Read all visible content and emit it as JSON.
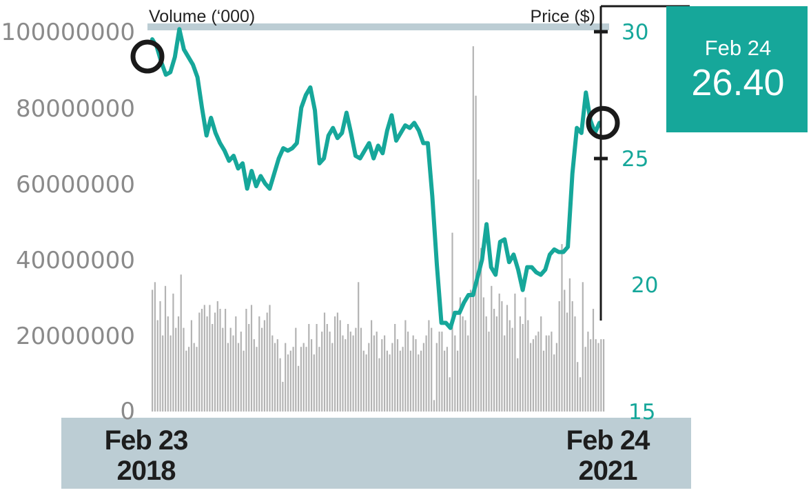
{
  "chart_data": {
    "type": "bar+line",
    "volume_axis": {
      "label": "Volume (‘000)",
      "ticks": [
        "0",
        "20000000",
        "40000000",
        "60000000",
        "80000000",
        "100000000"
      ],
      "range": [
        0,
        100000000
      ]
    },
    "price_axis": {
      "label": "Price ($)",
      "ticks": [
        "15",
        "20",
        "25",
        "30"
      ],
      "range": [
        15,
        30
      ]
    },
    "x_start": {
      "date": "Feb 23",
      "year": "2018"
    },
    "x_end": {
      "date": "Feb 24",
      "year": "2021"
    },
    "callout": {
      "date": "Feb 24",
      "value": "26.40"
    },
    "volume_values": [
      32000000,
      34000000,
      24000000,
      29000000,
      20000000,
      33000000,
      25000000,
      20000000,
      31000000,
      22000000,
      25000000,
      36000000,
      22000000,
      16000000,
      17000000,
      24000000,
      18000000,
      17000000,
      26000000,
      27000000,
      28000000,
      25000000,
      28000000,
      23000000,
      26000000,
      29000000,
      27000000,
      22000000,
      27000000,
      18000000,
      22000000,
      20000000,
      25000000,
      18000000,
      21000000,
      16000000,
      27000000,
      23000000,
      28000000,
      19000000,
      17000000,
      25000000,
      22000000,
      24000000,
      26000000,
      28000000,
      20000000,
      18000000,
      19000000,
      14000000,
      7800000,
      18000000,
      15000000,
      16000000,
      17000000,
      22000000,
      12000000,
      17000000,
      18000000,
      17000000,
      23000000,
      19000000,
      15000000,
      23000000,
      17000000,
      21000000,
      26000000,
      23000000,
      21000000,
      18000000,
      25000000,
      26000000,
      24000000,
      20000000,
      19000000,
      23000000,
      21000000,
      20000000,
      22000000,
      34000000,
      22000000,
      16000000,
      15000000,
      18000000,
      24000000,
      20000000,
      21000000,
      14000000,
      19000000,
      20000000,
      16000000,
      15000000,
      18000000,
      23000000,
      19000000,
      16000000,
      17000000,
      24000000,
      21000000,
      16000000,
      20000000,
      19000000,
      15000000,
      16000000,
      18000000,
      20000000,
      24000000,
      22000000,
      3000000,
      18000000,
      21000000,
      21000000,
      16000000,
      17000000,
      9000000,
      47000000,
      20000000,
      16000000,
      30000000,
      25000000,
      24000000,
      20000000,
      32000000,
      96000000,
      83000000,
      61000000,
      43000000,
      30000000,
      25000000,
      21000000,
      33000000,
      27000000,
      25000000,
      31000000,
      29000000,
      20000000,
      28000000,
      24000000,
      22000000,
      31000000,
      14000000,
      25000000,
      23000000,
      30000000,
      24000000,
      18000000,
      19000000,
      20000000,
      21000000,
      25000000,
      16000000,
      20000000,
      20000000,
      21000000,
      15000000,
      18000000,
      29000000,
      44000000,
      32000000,
      26000000,
      35000000,
      29000000,
      25000000,
      13000000,
      9000000,
      34000000,
      17000000,
      21000000,
      19000000,
      27000000,
      19000000,
      18000000,
      19000000,
      19000000
    ],
    "price_values": [
      29.7,
      29.4,
      28.8,
      28.3,
      28.4,
      29.0,
      30.1,
      29.3,
      29.0,
      28.7,
      28.2,
      27.0,
      25.9,
      26.6,
      26.0,
      25.6,
      25.3,
      24.9,
      25.1,
      24.6,
      24.8,
      23.8,
      24.5,
      23.9,
      24.3,
      24.0,
      23.8,
      24.4,
      25.0,
      25.4,
      25.3,
      25.4,
      25.6,
      27.0,
      27.5,
      27.8,
      26.9,
      24.8,
      25.0,
      25.9,
      26.2,
      25.8,
      26.0,
      26.8,
      26.0,
      25.1,
      25.0,
      25.3,
      25.6,
      25.0,
      25.5,
      25.2,
      26.1,
      26.7,
      25.7,
      26.0,
      26.3,
      26.2,
      26.4,
      26.1,
      25.6,
      25.6,
      23.5,
      20.8,
      18.5,
      18.5,
      18.3,
      18.9,
      18.9,
      19.3,
      19.6,
      19.6,
      20.3,
      21.0,
      22.4,
      20.7,
      20.4,
      21.7,
      21.8,
      20.9,
      21.2,
      20.6,
      19.8,
      20.7,
      20.7,
      20.5,
      20.4,
      20.6,
      21.2,
      21.4,
      21.3,
      21.3,
      21.5,
      24.4,
      26.2,
      26.0,
      27.6,
      26.5,
      26.0,
      26.4
    ]
  }
}
